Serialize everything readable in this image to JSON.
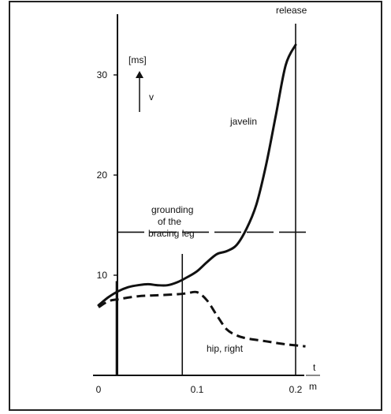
{
  "chart_data": {
    "type": "line",
    "x_ticks": [
      "0",
      "0.1",
      "0.2"
    ],
    "y_ticks": [
      "10",
      "20",
      "30"
    ],
    "xlim": [
      0,
      0.2
    ],
    "ylim": [
      0,
      35
    ],
    "x_axis_label": "t",
    "x_axis_unit": "m",
    "y_axis_unit": "[ms]",
    "y_axis_symbol": "v",
    "annotations": {
      "release": "release",
      "grounding_line1": "grounding",
      "grounding_line2": "of the",
      "grounding_line3": "bracing leg"
    },
    "reference_lines": {
      "horizontal_dashed_y": 14.3,
      "vertical_x": [
        0.018,
        0.085,
        0.2
      ]
    },
    "series": [
      {
        "name": "javelin",
        "style": "solid",
        "points": [
          [
            0,
            7.0
          ],
          [
            0.01,
            7.8
          ],
          [
            0.02,
            8.4
          ],
          [
            0.03,
            8.8
          ],
          [
            0.04,
            9.0
          ],
          [
            0.05,
            9.1
          ],
          [
            0.06,
            9.0
          ],
          [
            0.07,
            9.0
          ],
          [
            0.08,
            9.3
          ],
          [
            0.09,
            9.8
          ],
          [
            0.1,
            10.4
          ],
          [
            0.11,
            11.3
          ],
          [
            0.12,
            12.1
          ],
          [
            0.13,
            12.4
          ],
          [
            0.14,
            13.0
          ],
          [
            0.15,
            14.6
          ],
          [
            0.16,
            17.0
          ],
          [
            0.17,
            21.0
          ],
          [
            0.18,
            26.0
          ],
          [
            0.19,
            31.0
          ],
          [
            0.2,
            33.0
          ]
        ]
      },
      {
        "name": "hip, right",
        "style": "dashed",
        "points": [
          [
            0,
            6.8
          ],
          [
            0.01,
            7.4
          ],
          [
            0.02,
            7.6
          ],
          [
            0.04,
            7.9
          ],
          [
            0.06,
            8.0
          ],
          [
            0.08,
            8.1
          ],
          [
            0.09,
            8.2
          ],
          [
            0.1,
            8.3
          ],
          [
            0.11,
            7.5
          ],
          [
            0.12,
            6.0
          ],
          [
            0.13,
            4.6
          ],
          [
            0.14,
            4.0
          ],
          [
            0.15,
            3.7
          ],
          [
            0.17,
            3.4
          ],
          [
            0.19,
            3.1
          ],
          [
            0.21,
            2.9
          ]
        ]
      }
    ]
  }
}
